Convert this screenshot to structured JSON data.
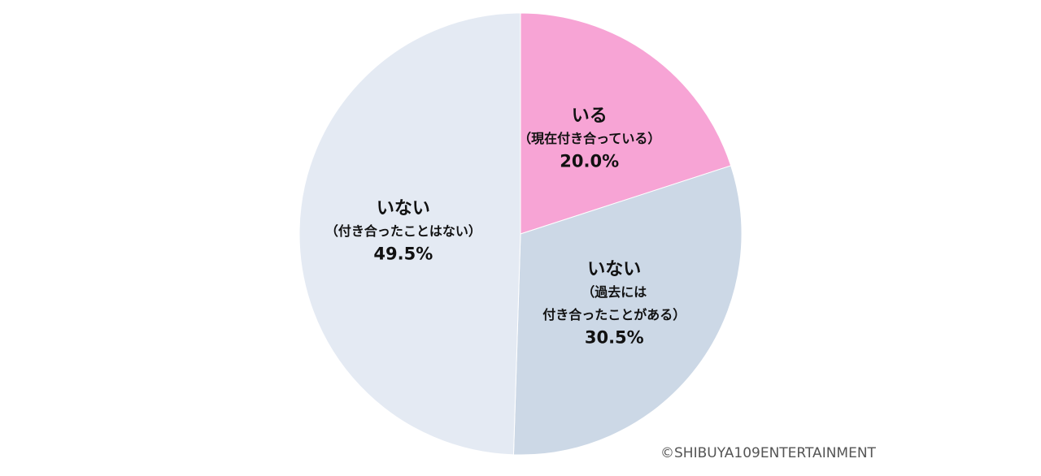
{
  "chart_data": {
    "type": "pie",
    "categories": [
      "いる",
      "いない",
      "いない"
    ],
    "notes": [
      [
        "（現在付き合っている）"
      ],
      [
        "（過去には",
        "付き合ったことがある）"
      ],
      [
        "（付き合ったことはない）"
      ]
    ],
    "values": [
      20.0,
      30.5,
      49.5
    ],
    "value_labels": [
      "20.0%",
      "30.5%",
      "49.5%"
    ],
    "colors": [
      "#f7a4d5",
      "#ccd8e6",
      "#e4eaf3"
    ],
    "credit": "©SHIBUYA109ENTERTAINMENT"
  }
}
